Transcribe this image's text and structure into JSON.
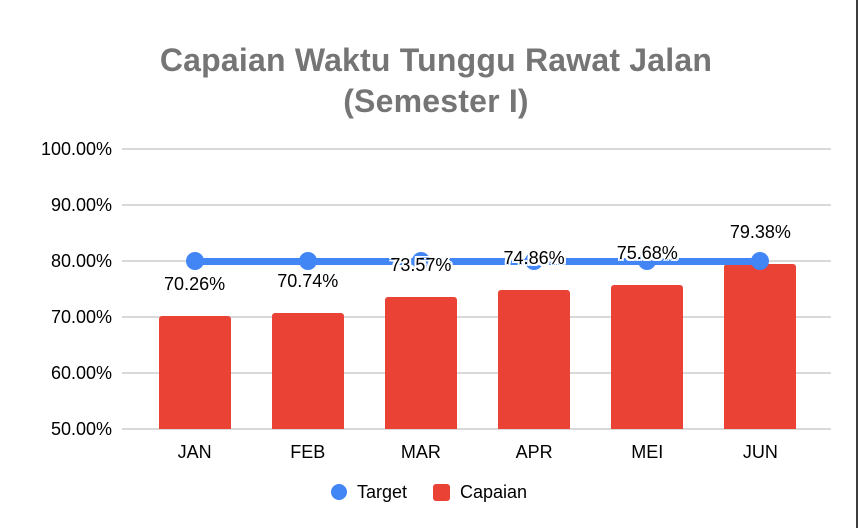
{
  "title": {
    "line1": "Capaian Waktu Tunggu Rawat Jalan",
    "line2": "(Semester I)"
  },
  "chart_data": {
    "type": "bar",
    "title": "Capaian Waktu Tunggu Rawat Jalan (Semester I)",
    "categories": [
      "JAN",
      "FEB",
      "MAR",
      "APR",
      "MEI",
      "JUN"
    ],
    "series": [
      {
        "name": "Target",
        "type": "line",
        "values": [
          80,
          80,
          80,
          80,
          80,
          80
        ],
        "color": "#4285F4"
      },
      {
        "name": "Capaian",
        "type": "bar",
        "values": [
          70.26,
          70.74,
          73.57,
          74.86,
          75.68,
          79.38
        ],
        "color": "#EA4335"
      }
    ],
    "value_labels": [
      "70.26%",
      "70.74%",
      "73.57%",
      "74.86%",
      "75.68%",
      "79.38%"
    ],
    "y_ticks": [
      "100.00%",
      "90.00%",
      "80.00%",
      "70.00%",
      "60.00%",
      "50.00%"
    ],
    "y_tick_values": [
      100,
      90,
      80,
      70,
      60,
      50
    ],
    "ylim": [
      50,
      100
    ],
    "grid": true,
    "legend_position": "bottom"
  },
  "legend": {
    "items": [
      {
        "label": "Target",
        "color": "#4285F4",
        "shape": "circle"
      },
      {
        "label": "Capaian",
        "color": "#EA4335",
        "shape": "square"
      }
    ]
  },
  "colors": {
    "bar": "#EA4335",
    "line": "#4285F4",
    "title_text": "#757575",
    "axis_text": "#000000",
    "value_label_text": "#000000",
    "halo": "#FFFFFF",
    "gridline": "#D9D9D9",
    "background": "#FFFFFF",
    "right_edge_line": "#3E3E3E"
  }
}
